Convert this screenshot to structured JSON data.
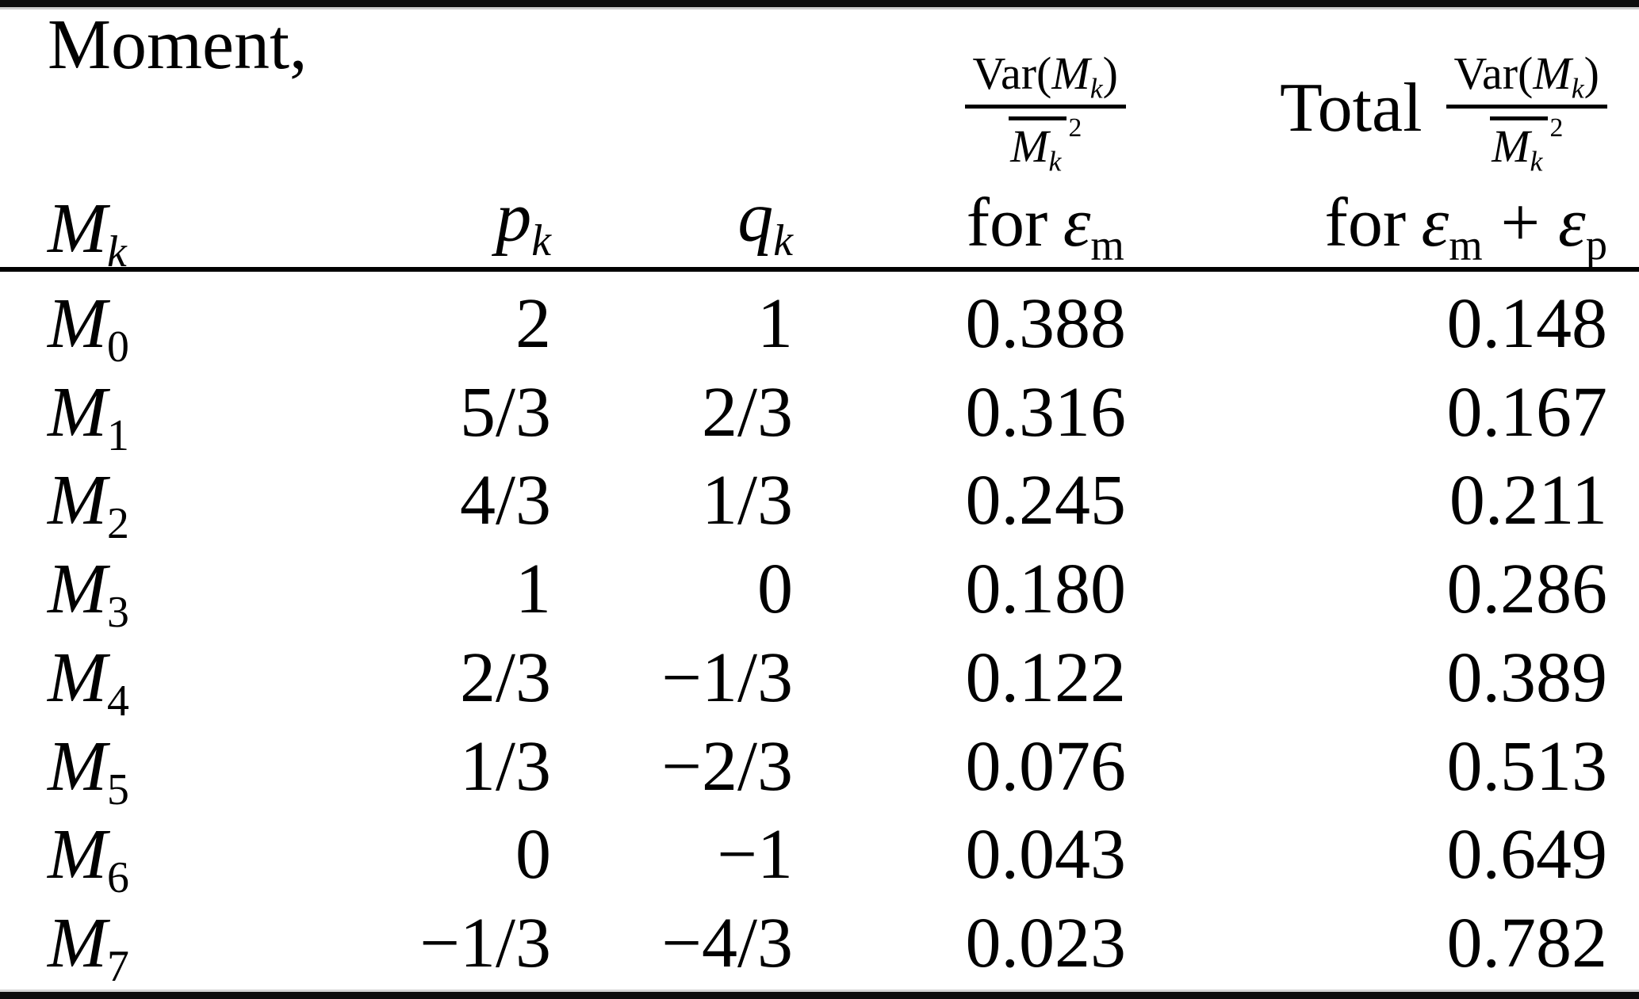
{
  "table": {
    "header": {
      "moment_word": "Moment,",
      "moment_sym": "M",
      "moment_sub": "k",
      "p_sym": "p",
      "p_sub": "k",
      "q_sym": "q",
      "q_sub": "k",
      "frac": {
        "var_word": "Var(",
        "m_sym": "M",
        "k_sub": "k",
        "close_paren": ")",
        "den_m": "M",
        "den_k": "k",
        "power": "2"
      },
      "total_word": "Total",
      "for_word": "for",
      "eps_sym": "ε",
      "eps_m_sub": "m",
      "eps_p_sub": "p",
      "plus_sign": "+"
    },
    "rows": [
      {
        "m": "M",
        "sub": "0",
        "p": "2",
        "q": "1",
        "var_em": "0.388",
        "var_total": "0.148"
      },
      {
        "m": "M",
        "sub": "1",
        "p": "5/3",
        "q": "2/3",
        "var_em": "0.316",
        "var_total": "0.167"
      },
      {
        "m": "M",
        "sub": "2",
        "p": "4/3",
        "q": "1/3",
        "var_em": "0.245",
        "var_total": "0.211"
      },
      {
        "m": "M",
        "sub": "3",
        "p": "1",
        "q": "0",
        "var_em": "0.180",
        "var_total": "0.286"
      },
      {
        "m": "M",
        "sub": "4",
        "p": "2/3",
        "q": "−1/3",
        "var_em": "0.122",
        "var_total": "0.389"
      },
      {
        "m": "M",
        "sub": "5",
        "p": "1/3",
        "q": "−2/3",
        "var_em": "0.076",
        "var_total": "0.513"
      },
      {
        "m": "M",
        "sub": "6",
        "p": "0",
        "q": "−1",
        "var_em": "0.043",
        "var_total": "0.649"
      },
      {
        "m": "M",
        "sub": "7",
        "p": "−1/3",
        "q": "−4/3",
        "var_em": "0.023",
        "var_total": "0.782"
      }
    ]
  }
}
